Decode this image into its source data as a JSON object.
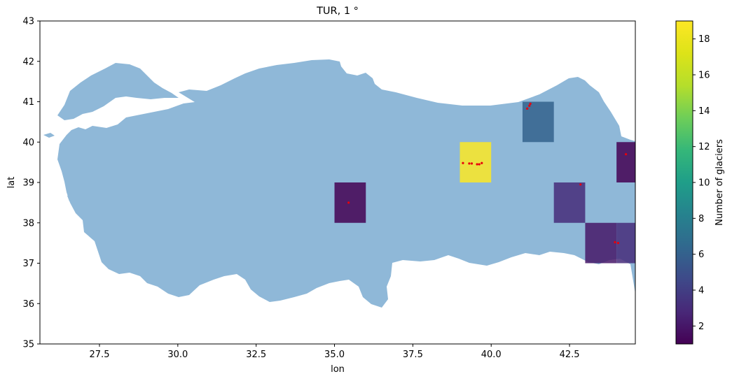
{
  "chart_data": {
    "type": "heatmap",
    "title": "TUR, 1 °",
    "xlabel": "lon",
    "ylabel": "lat",
    "xlim": [
      25.6,
      44.6
    ],
    "ylim": [
      35,
      43
    ],
    "xticks": [
      "27.5",
      "30.0",
      "32.5",
      "35.0",
      "37.5",
      "40.0",
      "42.5"
    ],
    "xtick_values": [
      27.5,
      30.0,
      32.5,
      35.0,
      37.5,
      40.0,
      42.5
    ],
    "yticks": [
      "35",
      "36",
      "37",
      "38",
      "39",
      "40",
      "41",
      "42",
      "43"
    ],
    "ytick_values": [
      35,
      36,
      37,
      38,
      39,
      40,
      41,
      42,
      43
    ],
    "colorbar": {
      "label": "Number of glaciers",
      "range": [
        1,
        19
      ],
      "ticks": [
        "2",
        "4",
        "6",
        "8",
        "10",
        "12",
        "14",
        "16",
        "18"
      ],
      "tick_values": [
        2,
        4,
        6,
        8,
        10,
        12,
        14,
        16,
        18
      ],
      "colormap": "viridis"
    },
    "cells": [
      {
        "lon": 39,
        "lat": 39,
        "count": 19
      },
      {
        "lon": 41,
        "lat": 40,
        "count": 6
      },
      {
        "lon": 42,
        "lat": 38,
        "count": 3
      },
      {
        "lon": 35,
        "lat": 38,
        "count": 1
      },
      {
        "lon": 44,
        "lat": 39,
        "count": 1
      },
      {
        "lon": 43,
        "lat": 37,
        "count": 2
      },
      {
        "lon": 44,
        "lat": 37,
        "count": 3
      }
    ],
    "glacier_points": [
      [
        39.1,
        39.48
      ],
      [
        39.3,
        39.47
      ],
      [
        39.38,
        39.47
      ],
      [
        39.55,
        39.45
      ],
      [
        39.62,
        39.45
      ],
      [
        39.7,
        39.48
      ],
      [
        41.15,
        40.83
      ],
      [
        41.22,
        40.9
      ],
      [
        41.25,
        40.95
      ],
      [
        35.45,
        38.5
      ],
      [
        42.85,
        38.95
      ],
      [
        43.95,
        37.52
      ],
      [
        44.05,
        37.5
      ],
      [
        44.3,
        39.7
      ]
    ],
    "colors": {
      "land": "#8fb8d8",
      "points": "#e8000b",
      "grid_alpha": 0.85
    }
  }
}
